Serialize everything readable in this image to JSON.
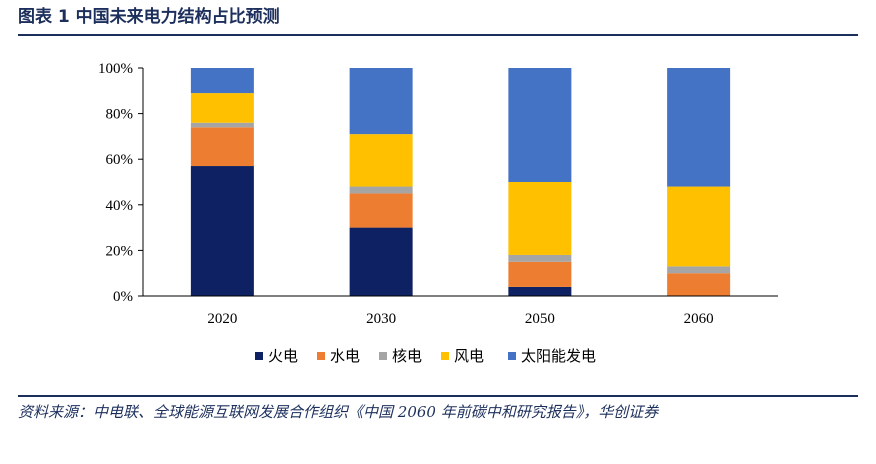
{
  "figure": {
    "title": "图表 1    中国未来电力结构占比预测",
    "source": "资料来源：中电联、全球能源互联网发展合作组织《中国 2060 年前碳中和研究报告》，华创证券"
  },
  "chart_data": {
    "type": "bar",
    "stacked": true,
    "categories": [
      "2020",
      "2030",
      "2050",
      "2060"
    ],
    "ylim": [
      0,
      100
    ],
    "yticks": [
      "0%",
      "20%",
      "40%",
      "60%",
      "80%",
      "100%"
    ],
    "yunit": "%",
    "grid": false,
    "legend_position": "bottom",
    "series": [
      {
        "name": "火电",
        "color": "#0d2163",
        "values": [
          57,
          30,
          4,
          0
        ]
      },
      {
        "name": "水电",
        "color": "#ed7d31",
        "values": [
          17,
          15,
          11,
          10
        ]
      },
      {
        "name": "核电",
        "color": "#a5a5a5",
        "values": [
          2,
          3,
          3,
          3
        ]
      },
      {
        "name": "风电",
        "color": "#ffc000",
        "values": [
          13,
          23,
          32,
          35
        ]
      },
      {
        "name": "太阳能发电",
        "color": "#4472c4",
        "values": [
          11,
          29,
          50,
          52
        ]
      }
    ]
  }
}
